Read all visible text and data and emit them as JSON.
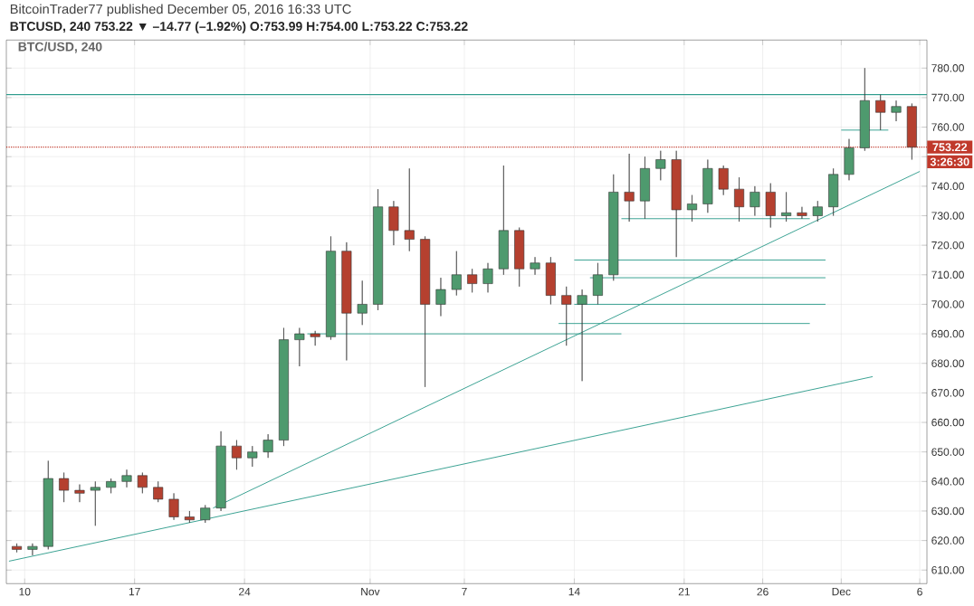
{
  "chart_data": {
    "type": "candlestick",
    "title": "BTC/USD, 240",
    "subtitle": "BitcoinTrader77 published December 05, 2016 16:33 UTC",
    "annotations": [
      "BTCUSD, 240 753.22 ▼ –14.77 (–1.92%) O:753.99 H:754.00 L:753.22 C:753.22",
      "3:26:30"
    ],
    "x": [
      "2016-10-09T12:00",
      "2016-10-10T12:00",
      "2016-10-11T12:00",
      "2016-10-12T12:00",
      "2016-10-13T12:00",
      "2016-10-14T12:00",
      "2016-10-15T12:00",
      "2016-10-16T12:00",
      "2016-10-17T12:00",
      "2016-10-18T12:00",
      "2016-10-19T12:00",
      "2016-10-20T12:00",
      "2016-10-21T12:00",
      "2016-10-22T12:00",
      "2016-10-23T12:00",
      "2016-10-24T12:00",
      "2016-10-25T12:00",
      "2016-10-26T12:00",
      "2016-10-27T12:00",
      "2016-10-28T12:00",
      "2016-10-29T12:00",
      "2016-10-30T12:00",
      "2016-10-31T12:00",
      "2016-11-01T12:00",
      "2016-11-02T12:00",
      "2016-11-03T12:00",
      "2016-11-04T12:00",
      "2016-11-05T12:00",
      "2016-11-06T12:00",
      "2016-11-07T12:00",
      "2016-11-08T12:00",
      "2016-11-09T12:00",
      "2016-11-10T12:00",
      "2016-11-11T12:00",
      "2016-11-12T12:00",
      "2016-11-13T12:00",
      "2016-11-14T12:00",
      "2016-11-15T12:00",
      "2016-11-16T12:00",
      "2016-11-17T12:00",
      "2016-11-18T12:00",
      "2016-11-19T12:00",
      "2016-11-20T12:00",
      "2016-11-21T12:00",
      "2016-11-22T12:00",
      "2016-11-23T12:00",
      "2016-11-24T12:00",
      "2016-11-25T12:00",
      "2016-11-26T12:00",
      "2016-11-27T12:00",
      "2016-11-28T12:00",
      "2016-11-29T12:00",
      "2016-11-30T12:00",
      "2016-12-01T12:00",
      "2016-12-02T12:00",
      "2016-12-03T12:00",
      "2016-12-04T12:00",
      "2016-12-05T12:00"
    ],
    "ohlc": [
      [
        618,
        619,
        616,
        617
      ],
      [
        617,
        619,
        615,
        618
      ],
      [
        618,
        647,
        617,
        641
      ],
      [
        641,
        643,
        633,
        637
      ],
      [
        637,
        639,
        633,
        636
      ],
      [
        637,
        640,
        625,
        638
      ],
      [
        638,
        641,
        636,
        640
      ],
      [
        640,
        644,
        638,
        642
      ],
      [
        642,
        643,
        636,
        638
      ],
      [
        638,
        640,
        633,
        634
      ],
      [
        634,
        636,
        627,
        628
      ],
      [
        628,
        630,
        626,
        627
      ],
      [
        627,
        632,
        626,
        631
      ],
      [
        631,
        657,
        630,
        652
      ],
      [
        652,
        654,
        644,
        648
      ],
      [
        648,
        652,
        645,
        650
      ],
      [
        650,
        656,
        648,
        654
      ],
      [
        654,
        692,
        652,
        688
      ],
      [
        688,
        692,
        679,
        690
      ],
      [
        690,
        691,
        686,
        689
      ],
      [
        689,
        723,
        688,
        718
      ],
      [
        718,
        721,
        681,
        697
      ],
      [
        697,
        708,
        693,
        700
      ],
      [
        700,
        739,
        698,
        733
      ],
      [
        733,
        735,
        720,
        725
      ],
      [
        725,
        746,
        718,
        722
      ],
      [
        722,
        723,
        672,
        700
      ],
      [
        700,
        709,
        696,
        705
      ],
      [
        705,
        718,
        703,
        710
      ],
      [
        710,
        712,
        704,
        707
      ],
      [
        707,
        714,
        704,
        712
      ],
      [
        712,
        747,
        710,
        725
      ],
      [
        725,
        726,
        706,
        712
      ],
      [
        712,
        716,
        710,
        714
      ],
      [
        714,
        716,
        700,
        703
      ],
      [
        703,
        706,
        686,
        700
      ],
      [
        700,
        705,
        674,
        703
      ],
      [
        703,
        714,
        700,
        710
      ],
      [
        710,
        744,
        708,
        738
      ],
      [
        738,
        751,
        728,
        735
      ],
      [
        735,
        750,
        729,
        746
      ],
      [
        746,
        752,
        742,
        749
      ],
      [
        749,
        752,
        716,
        732
      ],
      [
        732,
        737,
        728,
        734
      ],
      [
        734,
        749,
        731,
        746
      ],
      [
        746,
        747,
        737,
        739
      ],
      [
        739,
        743,
        728,
        733
      ],
      [
        733,
        740,
        730,
        738
      ],
      [
        738,
        741,
        726,
        730
      ],
      [
        730,
        738,
        728,
        731
      ],
      [
        731,
        733,
        729,
        730
      ],
      [
        730,
        735,
        728,
        733
      ],
      [
        733,
        746,
        730,
        744
      ],
      [
        744,
        756,
        742,
        753
      ],
      [
        753,
        780,
        752,
        769
      ],
      [
        769,
        771,
        759,
        765
      ],
      [
        765,
        769,
        762,
        767
      ],
      [
        767,
        768,
        749,
        753.22
      ]
    ],
    "colors": [
      "#b5402f",
      "#4e9a6e",
      "#4e9a6e",
      "#b5402f",
      "#b5402f",
      "#4e9a6e",
      "#4e9a6e",
      "#4e9a6e",
      "#b5402f",
      "#b5402f",
      "#b5402f",
      "#b5402f",
      "#4e9a6e",
      "#4e9a6e",
      "#b5402f",
      "#4e9a6e",
      "#4e9a6e",
      "#4e9a6e",
      "#4e9a6e",
      "#b5402f",
      "#4e9a6e",
      "#b5402f",
      "#4e9a6e",
      "#4e9a6e",
      "#b5402f",
      "#b5402f",
      "#b5402f",
      "#4e9a6e",
      "#4e9a6e",
      "#b5402f",
      "#4e9a6e",
      "#4e9a6e",
      "#b5402f",
      "#4e9a6e",
      "#b5402f",
      "#b5402f",
      "#4e9a6e",
      "#4e9a6e",
      "#4e9a6e",
      "#b5402f",
      "#4e9a6e",
      "#4e9a6e",
      "#b5402f",
      "#4e9a6e",
      "#4e9a6e",
      "#b5402f",
      "#b5402f",
      "#4e9a6e",
      "#b5402f",
      "#4e9a6e",
      "#b5402f",
      "#4e9a6e",
      "#4e9a6e",
      "#4e9a6e",
      "#4e9a6e",
      "#b5402f",
      "#4e9a6e",
      "#b5402f"
    ],
    "series": [
      {
        "type": "line",
        "color": "#2e9c8c",
        "x": [
          "2016-10-28",
          "2016-11-17"
        ],
        "values": [
          690,
          690
        ]
      },
      {
        "type": "line",
        "color": "#2e9c8c",
        "x": [
          "2016-11-13",
          "2016-11-29"
        ],
        "values": [
          693.5,
          693.5
        ]
      },
      {
        "type": "line",
        "color": "#2e9c8c",
        "x": [
          "2016-11-14",
          "2016-11-30"
        ],
        "values": [
          700,
          700
        ]
      },
      {
        "type": "line",
        "color": "#2e9c8c",
        "x": [
          "2016-11-15",
          "2016-11-30"
        ],
        "values": [
          709,
          709
        ]
      },
      {
        "type": "line",
        "color": "#2e9c8c",
        "x": [
          "2016-11-14",
          "2016-11-30"
        ],
        "values": [
          715,
          715
        ]
      },
      {
        "type": "line",
        "color": "#2e9c8c",
        "x": [
          "2016-11-17",
          "2016-11-29"
        ],
        "values": [
          729,
          729
        ]
      },
      {
        "type": "line",
        "color": "#2e9c8c",
        "x": [
          "2016-12-01",
          "2016-12-04"
        ],
        "values": [
          759,
          759
        ]
      },
      {
        "type": "line",
        "color": "#2e9c8c",
        "x": [
          "2016-10-22",
          "2016-12-06"
        ],
        "values": [
          631,
          745
        ]
      },
      {
        "type": "line",
        "color": "#2e9c8c",
        "x": [
          "2016-10-09",
          "2016-12-03"
        ],
        "values": [
          613,
          675.5
        ]
      }
    ],
    "ref_lines": [
      {
        "axis": "y",
        "value": 771,
        "color": "#2e9c8c",
        "line_style": "solid"
      },
      {
        "axis": "y",
        "value": 753.22,
        "label": "753.22",
        "color": "#c0392b",
        "line_style": "dotted"
      }
    ],
    "xlim": [
      "2016-10-08T20:00",
      "2016-12-06T11:00"
    ],
    "xticks": [
      {
        "value": "2016-10-10",
        "label": "10"
      },
      {
        "value": "2016-10-17",
        "label": "17"
      },
      {
        "value": "2016-10-24",
        "label": "24"
      },
      {
        "value": "2016-11-01",
        "label": "Nov"
      },
      {
        "value": "2016-11-07",
        "label": "7"
      },
      {
        "value": "2016-11-14",
        "label": "14"
      },
      {
        "value": "2016-11-21",
        "label": "21"
      },
      {
        "value": "2016-11-26",
        "label": "26"
      },
      {
        "value": "2016-12-01",
        "label": "Dec"
      },
      {
        "value": "2016-12-06",
        "label": "6"
      }
    ],
    "ylim": [
      605.4,
      789.5
    ],
    "yticks": [
      {
        "value": 610,
        "label": "610.00"
      },
      {
        "value": 620,
        "label": "620.00"
      },
      {
        "value": 630,
        "label": "630.00"
      },
      {
        "value": 640,
        "label": "640.00"
      },
      {
        "value": 650,
        "label": "650.00"
      },
      {
        "value": 660,
        "label": "660.00"
      },
      {
        "value": 670,
        "label": "670.00"
      },
      {
        "value": 680,
        "label": "680.00"
      },
      {
        "value": 690,
        "label": "690.00"
      },
      {
        "value": 700,
        "label": "700.00"
      },
      {
        "value": 710,
        "label": "710.00"
      },
      {
        "value": 720,
        "label": "720.00"
      },
      {
        "value": 730,
        "label": "730.00"
      },
      {
        "value": 740,
        "label": "740.00"
      },
      {
        "value": 750,
        "label": null
      },
      {
        "value": 760,
        "label": "760.00"
      },
      {
        "value": 770,
        "label": "770.00"
      },
      {
        "value": 780,
        "label": "780.00"
      }
    ],
    "grid": true
  }
}
